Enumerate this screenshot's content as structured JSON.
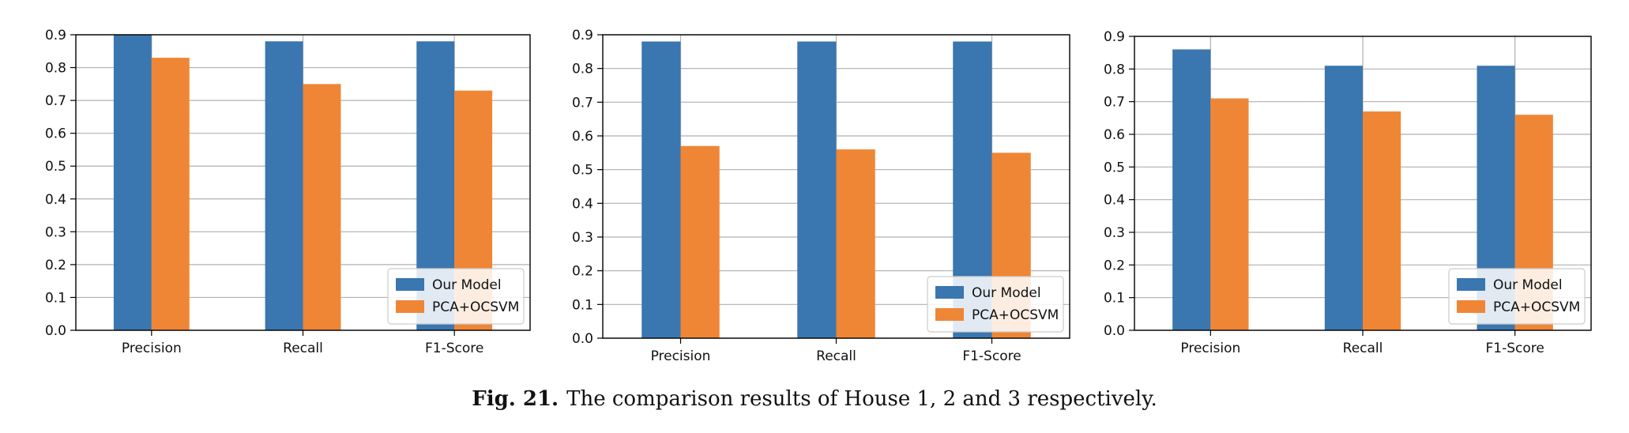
{
  "caption": {
    "label": "Fig. 21.",
    "text": "The comparison results of House 1, 2 and 3 respectively."
  },
  "colors": {
    "our_model": "#3a76af",
    "pca_ocsvm": "#ef8636",
    "grid": "#b0b0b0",
    "axis": "#000000"
  },
  "chart_data": [
    {
      "type": "bar",
      "categories": [
        "Precision",
        "Recall",
        "F1-Score"
      ],
      "series": [
        {
          "name": "Our Model",
          "values": [
            0.9,
            0.88,
            0.88
          ]
        },
        {
          "name": "PCA+OCSVM",
          "values": [
            0.83,
            0.75,
            0.73
          ]
        }
      ],
      "ylim": [
        0,
        0.9
      ],
      "yticks": [
        "0.0",
        "0.1",
        "0.2",
        "0.3",
        "0.4",
        "0.5",
        "0.6",
        "0.7",
        "0.8",
        "0.9"
      ],
      "grid": true,
      "legend": "lower-right"
    },
    {
      "type": "bar",
      "categories": [
        "Precision",
        "Recall",
        "F1-Score"
      ],
      "series": [
        {
          "name": "Our Model",
          "values": [
            0.88,
            0.88,
            0.88
          ]
        },
        {
          "name": "PCA+OCSVM",
          "values": [
            0.57,
            0.56,
            0.55
          ]
        }
      ],
      "ylim": [
        0,
        0.9
      ],
      "yticks": [
        "0.0",
        "0.1",
        "0.2",
        "0.3",
        "0.4",
        "0.5",
        "0.6",
        "0.7",
        "0.8",
        "0.9"
      ],
      "grid": true,
      "legend": "lower-right"
    },
    {
      "type": "bar",
      "categories": [
        "Precision",
        "Recall",
        "F1-Score"
      ],
      "series": [
        {
          "name": "Our Model",
          "values": [
            0.86,
            0.81,
            0.81
          ]
        },
        {
          "name": "PCA+OCSVM",
          "values": [
            0.71,
            0.67,
            0.66
          ]
        }
      ],
      "ylim": [
        0,
        0.9
      ],
      "yticks": [
        "0.0",
        "0.1",
        "0.2",
        "0.3",
        "0.4",
        "0.5",
        "0.6",
        "0.7",
        "0.8",
        "0.9"
      ],
      "grid": true,
      "legend": "lower-right"
    }
  ]
}
